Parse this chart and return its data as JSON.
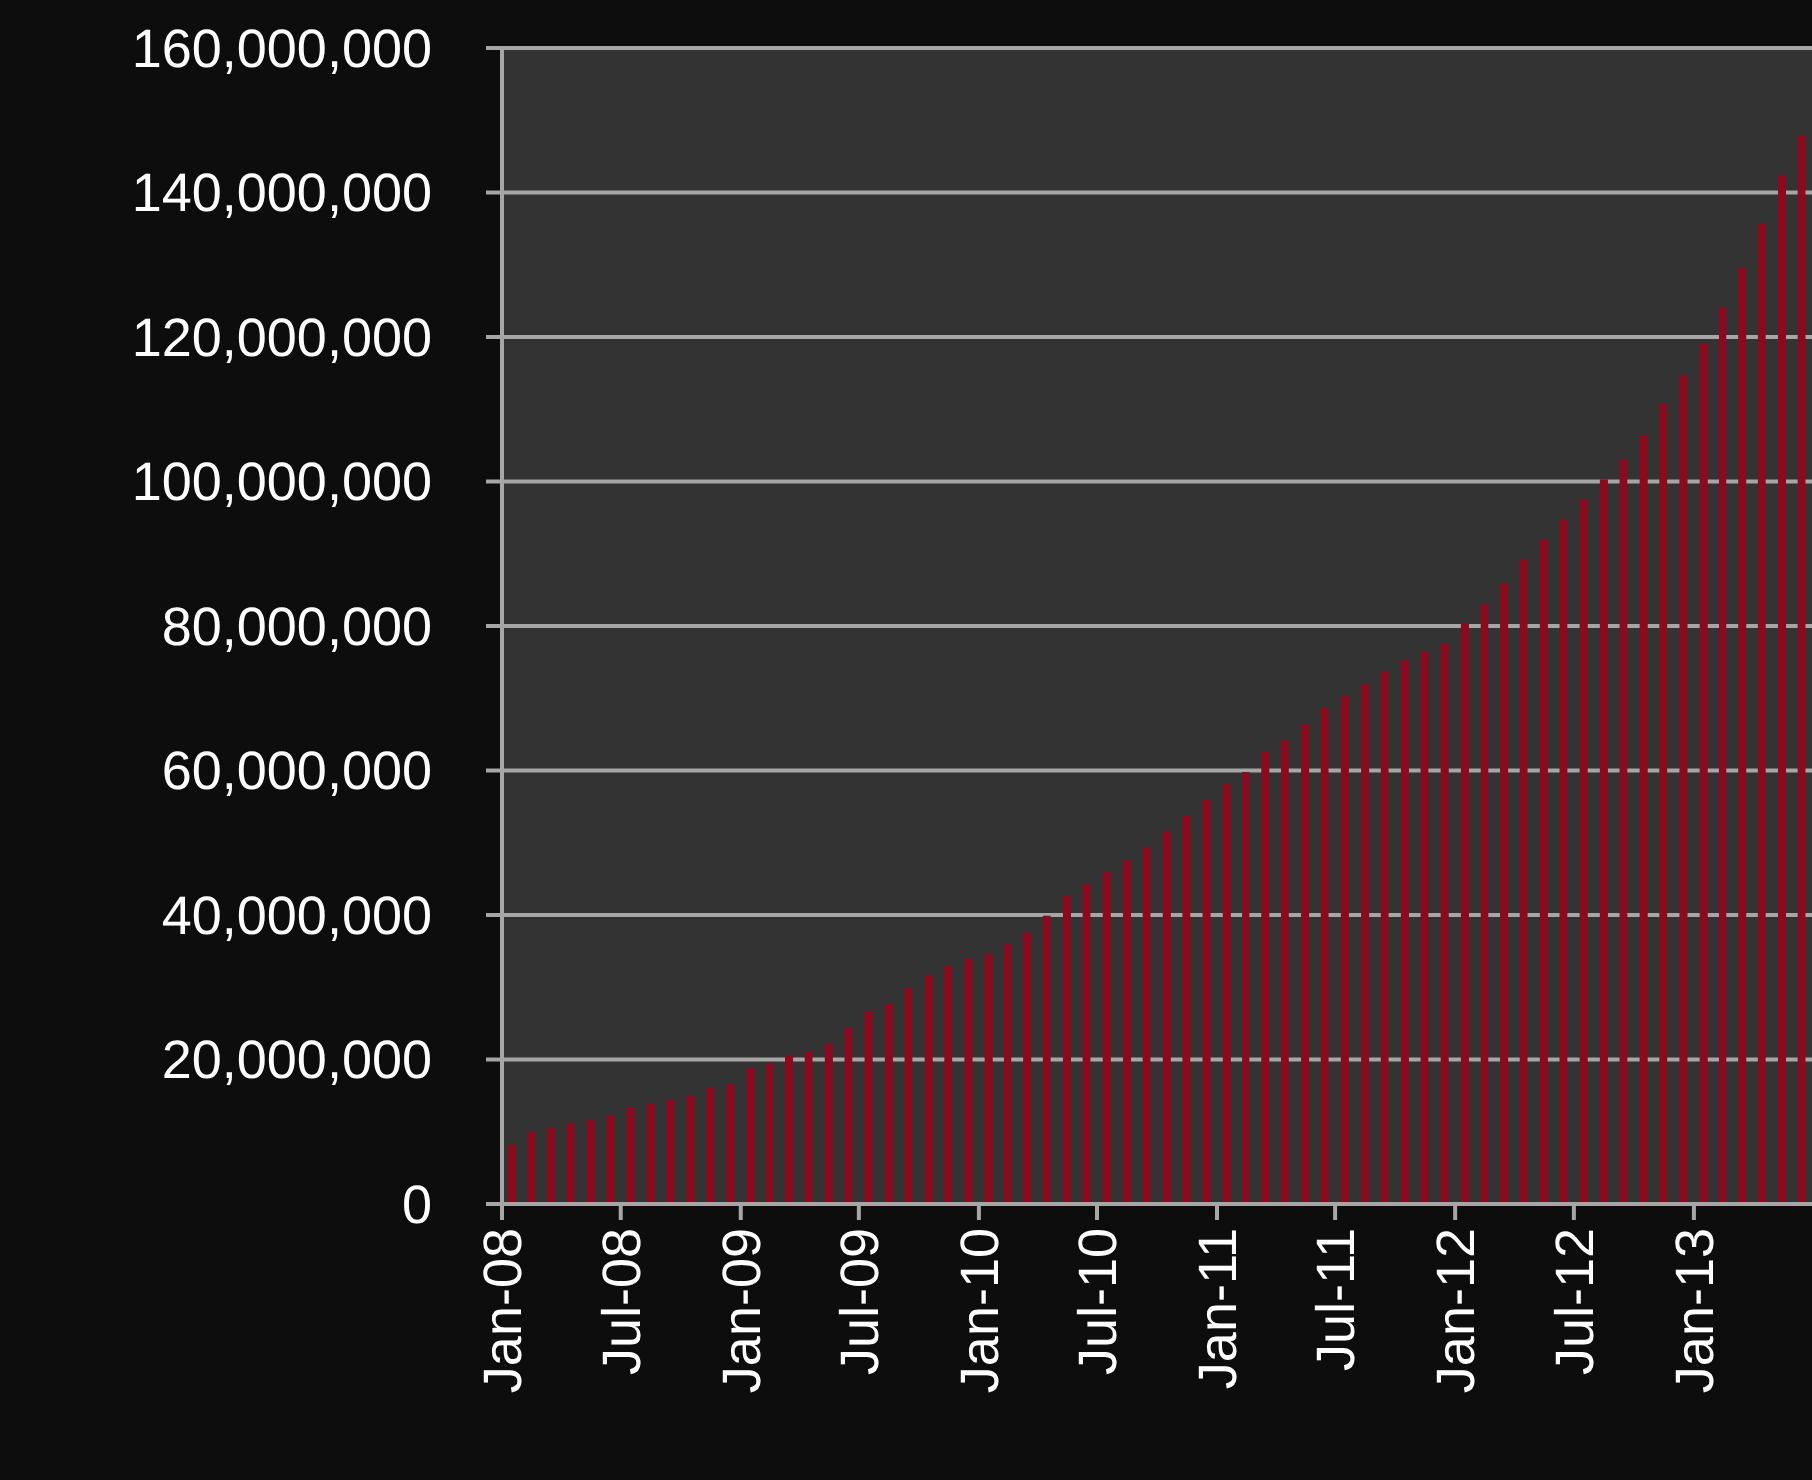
{
  "chart_data": {
    "type": "bar",
    "color": "#8b0a1e",
    "x": [
      "2008-01-16",
      "2008-02-15",
      "2008-03-16",
      "2008-04-15",
      "2008-05-16",
      "2008-06-15",
      "2008-07-16",
      "2008-08-16",
      "2008-09-15",
      "2008-10-16",
      "2008-11-15",
      "2008-12-16",
      "2009-01-16",
      "2009-02-14",
      "2009-03-16",
      "2009-04-15",
      "2009-05-16",
      "2009-06-15",
      "2009-07-16",
      "2009-08-16",
      "2009-09-15",
      "2009-10-16",
      "2009-11-15",
      "2009-12-16",
      "2010-01-16",
      "2010-02-14",
      "2010-03-16",
      "2010-04-15",
      "2010-05-16",
      "2010-06-15",
      "2010-07-16",
      "2010-08-16",
      "2010-09-15",
      "2010-10-16",
      "2010-11-15",
      "2010-12-16",
      "2011-01-16",
      "2011-02-14",
      "2011-03-16",
      "2011-04-15",
      "2011-05-16",
      "2011-06-15",
      "2011-07-16",
      "2011-08-16",
      "2011-09-15",
      "2011-10-16",
      "2011-11-15",
      "2011-12-16",
      "2012-01-16",
      "2012-02-15",
      "2012-03-16",
      "2012-04-15",
      "2012-05-16",
      "2012-06-15",
      "2012-07-16",
      "2012-08-16",
      "2012-09-15",
      "2012-10-16",
      "2012-11-15",
      "2012-12-16",
      "2013-01-16",
      "2013-02-14",
      "2013-03-16",
      "2013-04-15",
      "2013-05-16",
      "2013-06-15"
    ],
    "values": [
      8200000,
      10000000,
      10500000,
      11200000,
      11600000,
      12300000,
      13400000,
      13900000,
      14500000,
      15000000,
      16100000,
      16600000,
      18900000,
      19500000,
      20600000,
      21100000,
      22200000,
      24400000,
      26700000,
      27700000,
      29900000,
      31700000,
      33000000,
      34000000,
      34700000,
      36000000,
      37600000,
      39900000,
      42600000,
      44300000,
      46000000,
      47600000,
      49400000,
      51600000,
      53700000,
      55900000,
      58100000,
      59800000,
      62600000,
      64200000,
      66400000,
      68700000,
      70300000,
      72000000,
      73700000,
      75300000,
      76500000,
      77600000,
      80400000,
      83100000,
      85900000,
      89200000,
      92000000,
      94800000,
      97500000,
      100300000,
      103100000,
      106400000,
      110800000,
      114700000,
      119100000,
      124100000,
      129600000,
      135700000,
      142400000,
      147900000
    ],
    "xlim": [
      "2008-01",
      "2013-07"
    ],
    "xticks": [
      {
        "value": "2008-01",
        "label": "Jan-08"
      },
      {
        "value": "2008-07",
        "label": "Jul-08"
      },
      {
        "value": "2009-01",
        "label": "Jan-09"
      },
      {
        "value": "2009-07",
        "label": "Jul-09"
      },
      {
        "value": "2010-01",
        "label": "Jan-10"
      },
      {
        "value": "2010-07",
        "label": "Jul-10"
      },
      {
        "value": "2011-01",
        "label": "Jan-11"
      },
      {
        "value": "2011-07",
        "label": "Jul-11"
      },
      {
        "value": "2012-01",
        "label": "Jan-12"
      },
      {
        "value": "2012-07",
        "label": "Jul-12"
      },
      {
        "value": "2013-01",
        "label": "Jan-13"
      }
    ],
    "ylim": [
      0,
      160000000
    ],
    "yticks": [
      0,
      {
        "value": 20000000,
        "label": "20,000,000"
      },
      {
        "value": 40000000,
        "label": "40,000,000"
      },
      {
        "value": 60000000,
        "label": "60,000,000"
      },
      {
        "value": 80000000,
        "label": "80,000,000"
      },
      {
        "value": 100000000,
        "label": "100,000,000"
      },
      {
        "value": 120000000,
        "label": "120,000,000"
      },
      {
        "value": 140000000,
        "label": "140,000,000"
      },
      {
        "value": 160000000,
        "label": "160,000,000"
      }
    ],
    "grid": "y"
  }
}
